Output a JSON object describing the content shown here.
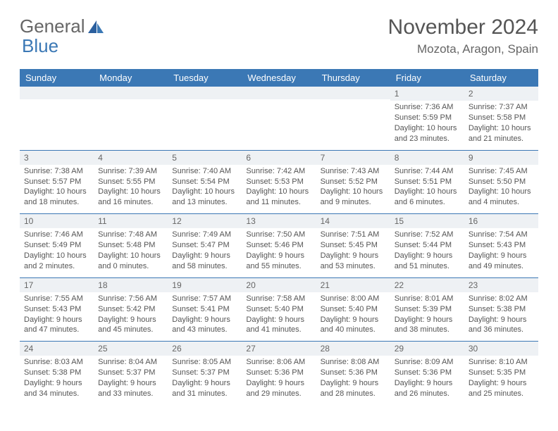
{
  "logo": {
    "word1": "General",
    "word2": "Blue"
  },
  "title": "November 2024",
  "location": "Mozota, Aragon, Spain",
  "colors": {
    "header_bg": "#3b78b5",
    "header_text": "#ffffff",
    "daynum_bg": "#eef1f4",
    "row_border": "#3b78b5",
    "text": "#555555"
  },
  "day_labels": [
    "Sunday",
    "Monday",
    "Tuesday",
    "Wednesday",
    "Thursday",
    "Friday",
    "Saturday"
  ],
  "weeks": [
    [
      null,
      null,
      null,
      null,
      null,
      {
        "n": "1",
        "sunrise": "Sunrise: 7:36 AM",
        "sunset": "Sunset: 5:59 PM",
        "daylight": "Daylight: 10 hours and 23 minutes."
      },
      {
        "n": "2",
        "sunrise": "Sunrise: 7:37 AM",
        "sunset": "Sunset: 5:58 PM",
        "daylight": "Daylight: 10 hours and 21 minutes."
      }
    ],
    [
      {
        "n": "3",
        "sunrise": "Sunrise: 7:38 AM",
        "sunset": "Sunset: 5:57 PM",
        "daylight": "Daylight: 10 hours and 18 minutes."
      },
      {
        "n": "4",
        "sunrise": "Sunrise: 7:39 AM",
        "sunset": "Sunset: 5:55 PM",
        "daylight": "Daylight: 10 hours and 16 minutes."
      },
      {
        "n": "5",
        "sunrise": "Sunrise: 7:40 AM",
        "sunset": "Sunset: 5:54 PM",
        "daylight": "Daylight: 10 hours and 13 minutes."
      },
      {
        "n": "6",
        "sunrise": "Sunrise: 7:42 AM",
        "sunset": "Sunset: 5:53 PM",
        "daylight": "Daylight: 10 hours and 11 minutes."
      },
      {
        "n": "7",
        "sunrise": "Sunrise: 7:43 AM",
        "sunset": "Sunset: 5:52 PM",
        "daylight": "Daylight: 10 hours and 9 minutes."
      },
      {
        "n": "8",
        "sunrise": "Sunrise: 7:44 AM",
        "sunset": "Sunset: 5:51 PM",
        "daylight": "Daylight: 10 hours and 6 minutes."
      },
      {
        "n": "9",
        "sunrise": "Sunrise: 7:45 AM",
        "sunset": "Sunset: 5:50 PM",
        "daylight": "Daylight: 10 hours and 4 minutes."
      }
    ],
    [
      {
        "n": "10",
        "sunrise": "Sunrise: 7:46 AM",
        "sunset": "Sunset: 5:49 PM",
        "daylight": "Daylight: 10 hours and 2 minutes."
      },
      {
        "n": "11",
        "sunrise": "Sunrise: 7:48 AM",
        "sunset": "Sunset: 5:48 PM",
        "daylight": "Daylight: 10 hours and 0 minutes."
      },
      {
        "n": "12",
        "sunrise": "Sunrise: 7:49 AM",
        "sunset": "Sunset: 5:47 PM",
        "daylight": "Daylight: 9 hours and 58 minutes."
      },
      {
        "n": "13",
        "sunrise": "Sunrise: 7:50 AM",
        "sunset": "Sunset: 5:46 PM",
        "daylight": "Daylight: 9 hours and 55 minutes."
      },
      {
        "n": "14",
        "sunrise": "Sunrise: 7:51 AM",
        "sunset": "Sunset: 5:45 PM",
        "daylight": "Daylight: 9 hours and 53 minutes."
      },
      {
        "n": "15",
        "sunrise": "Sunrise: 7:52 AM",
        "sunset": "Sunset: 5:44 PM",
        "daylight": "Daylight: 9 hours and 51 minutes."
      },
      {
        "n": "16",
        "sunrise": "Sunrise: 7:54 AM",
        "sunset": "Sunset: 5:43 PM",
        "daylight": "Daylight: 9 hours and 49 minutes."
      }
    ],
    [
      {
        "n": "17",
        "sunrise": "Sunrise: 7:55 AM",
        "sunset": "Sunset: 5:43 PM",
        "daylight": "Daylight: 9 hours and 47 minutes."
      },
      {
        "n": "18",
        "sunrise": "Sunrise: 7:56 AM",
        "sunset": "Sunset: 5:42 PM",
        "daylight": "Daylight: 9 hours and 45 minutes."
      },
      {
        "n": "19",
        "sunrise": "Sunrise: 7:57 AM",
        "sunset": "Sunset: 5:41 PM",
        "daylight": "Daylight: 9 hours and 43 minutes."
      },
      {
        "n": "20",
        "sunrise": "Sunrise: 7:58 AM",
        "sunset": "Sunset: 5:40 PM",
        "daylight": "Daylight: 9 hours and 41 minutes."
      },
      {
        "n": "21",
        "sunrise": "Sunrise: 8:00 AM",
        "sunset": "Sunset: 5:40 PM",
        "daylight": "Daylight: 9 hours and 40 minutes."
      },
      {
        "n": "22",
        "sunrise": "Sunrise: 8:01 AM",
        "sunset": "Sunset: 5:39 PM",
        "daylight": "Daylight: 9 hours and 38 minutes."
      },
      {
        "n": "23",
        "sunrise": "Sunrise: 8:02 AM",
        "sunset": "Sunset: 5:38 PM",
        "daylight": "Daylight: 9 hours and 36 minutes."
      }
    ],
    [
      {
        "n": "24",
        "sunrise": "Sunrise: 8:03 AM",
        "sunset": "Sunset: 5:38 PM",
        "daylight": "Daylight: 9 hours and 34 minutes."
      },
      {
        "n": "25",
        "sunrise": "Sunrise: 8:04 AM",
        "sunset": "Sunset: 5:37 PM",
        "daylight": "Daylight: 9 hours and 33 minutes."
      },
      {
        "n": "26",
        "sunrise": "Sunrise: 8:05 AM",
        "sunset": "Sunset: 5:37 PM",
        "daylight": "Daylight: 9 hours and 31 minutes."
      },
      {
        "n": "27",
        "sunrise": "Sunrise: 8:06 AM",
        "sunset": "Sunset: 5:36 PM",
        "daylight": "Daylight: 9 hours and 29 minutes."
      },
      {
        "n": "28",
        "sunrise": "Sunrise: 8:08 AM",
        "sunset": "Sunset: 5:36 PM",
        "daylight": "Daylight: 9 hours and 28 minutes."
      },
      {
        "n": "29",
        "sunrise": "Sunrise: 8:09 AM",
        "sunset": "Sunset: 5:36 PM",
        "daylight": "Daylight: 9 hours and 26 minutes."
      },
      {
        "n": "30",
        "sunrise": "Sunrise: 8:10 AM",
        "sunset": "Sunset: 5:35 PM",
        "daylight": "Daylight: 9 hours and 25 minutes."
      }
    ]
  ]
}
